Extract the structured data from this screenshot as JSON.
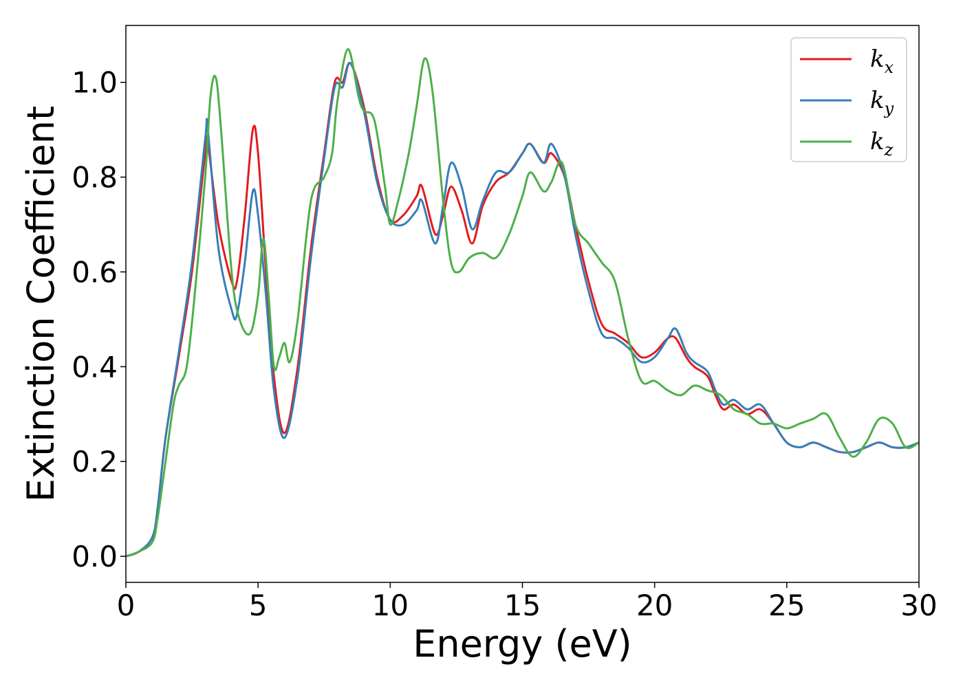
{
  "chart_data": {
    "type": "line",
    "title": "",
    "xlabel": "Energy (eV)",
    "ylabel": "Extinction Coefficient",
    "xlim": [
      0,
      30
    ],
    "ylim": [
      -0.055,
      1.12
    ],
    "xticks": [
      0,
      5,
      10,
      15,
      20,
      25,
      30
    ],
    "xtick_labels": [
      "0",
      "5",
      "10",
      "15",
      "20",
      "25",
      "30"
    ],
    "yticks": [
      0.0,
      0.2,
      0.4,
      0.6,
      0.8,
      1.0
    ],
    "ytick_labels": [
      "0.0",
      "0.2",
      "0.4",
      "0.6",
      "0.8",
      "1.0"
    ],
    "grid": false,
    "legend_position": "top-right",
    "series": [
      {
        "name": "k_x",
        "label_base": "k",
        "label_sub": "x",
        "color": "#e41a1c",
        "x": [
          0,
          0.5,
          1.0,
          1.2,
          1.5,
          2.0,
          2.5,
          3.0,
          3.1,
          3.5,
          4.0,
          4.2,
          4.5,
          4.8,
          5.0,
          5.3,
          5.6,
          6.0,
          6.5,
          7.0,
          7.5,
          7.9,
          8.2,
          8.5,
          9.0,
          9.5,
          10.0,
          10.5,
          11.0,
          11.2,
          11.7,
          12.0,
          12.3,
          12.7,
          13.1,
          13.5,
          14.0,
          14.5,
          15.0,
          15.3,
          15.8,
          16.1,
          16.6,
          17.0,
          17.5,
          18.0,
          18.5,
          19.0,
          19.5,
          20.0,
          20.5,
          20.8,
          21.2,
          21.5,
          22.0,
          22.3,
          22.6,
          23.0,
          23.5,
          24.0,
          24.5,
          25.0,
          25.5,
          26.0,
          26.5,
          27.0,
          27.5,
          28.0,
          28.5,
          29.0,
          29.5,
          30.0
        ],
        "y": [
          0.0,
          0.01,
          0.04,
          0.1,
          0.25,
          0.42,
          0.6,
          0.85,
          0.87,
          0.7,
          0.58,
          0.58,
          0.72,
          0.9,
          0.85,
          0.6,
          0.38,
          0.26,
          0.4,
          0.65,
          0.85,
          1.0,
          1.0,
          1.04,
          0.95,
          0.8,
          0.71,
          0.72,
          0.76,
          0.78,
          0.68,
          0.72,
          0.78,
          0.73,
          0.66,
          0.74,
          0.79,
          0.81,
          0.85,
          0.87,
          0.83,
          0.85,
          0.8,
          0.7,
          0.58,
          0.49,
          0.47,
          0.45,
          0.42,
          0.43,
          0.46,
          0.46,
          0.42,
          0.4,
          0.38,
          0.34,
          0.31,
          0.32,
          0.3,
          0.31,
          0.28,
          0.24,
          0.23,
          0.24,
          0.23,
          0.22,
          0.22,
          0.23,
          0.24,
          0.23,
          0.23,
          0.24
        ]
      },
      {
        "name": "k_y",
        "label_base": "k",
        "label_sub": "y",
        "color": "#377eb8",
        "x": [
          0,
          0.5,
          1.0,
          1.2,
          1.5,
          2.0,
          2.5,
          3.0,
          3.1,
          3.5,
          4.0,
          4.2,
          4.5,
          4.8,
          5.0,
          5.3,
          5.6,
          6.0,
          6.5,
          7.0,
          7.5,
          7.9,
          8.2,
          8.5,
          9.0,
          9.5,
          10.0,
          10.5,
          11.0,
          11.2,
          11.7,
          12.0,
          12.3,
          12.7,
          13.1,
          13.5,
          14.0,
          14.5,
          15.0,
          15.3,
          15.8,
          16.1,
          16.6,
          17.0,
          17.5,
          18.0,
          18.5,
          19.0,
          19.5,
          20.0,
          20.5,
          20.8,
          21.2,
          21.5,
          22.0,
          22.3,
          22.6,
          23.0,
          23.5,
          24.0,
          24.5,
          25.0,
          25.5,
          26.0,
          26.5,
          27.0,
          27.5,
          28.0,
          28.5,
          29.0,
          29.5,
          30.0
        ],
        "y": [
          0.0,
          0.01,
          0.04,
          0.1,
          0.25,
          0.43,
          0.62,
          0.88,
          0.9,
          0.65,
          0.52,
          0.51,
          0.62,
          0.77,
          0.72,
          0.55,
          0.35,
          0.25,
          0.38,
          0.63,
          0.84,
          0.99,
          0.99,
          1.04,
          0.94,
          0.79,
          0.71,
          0.7,
          0.73,
          0.75,
          0.66,
          0.74,
          0.83,
          0.78,
          0.69,
          0.75,
          0.81,
          0.81,
          0.85,
          0.87,
          0.83,
          0.87,
          0.8,
          0.68,
          0.56,
          0.47,
          0.46,
          0.44,
          0.41,
          0.42,
          0.46,
          0.48,
          0.43,
          0.41,
          0.39,
          0.35,
          0.32,
          0.33,
          0.31,
          0.32,
          0.28,
          0.24,
          0.23,
          0.24,
          0.23,
          0.22,
          0.22,
          0.23,
          0.24,
          0.23,
          0.23,
          0.24
        ]
      },
      {
        "name": "k_z",
        "label_base": "k",
        "label_sub": "z",
        "color": "#4daf4a",
        "x": [
          0,
          0.5,
          1.0,
          1.2,
          1.5,
          1.8,
          2.0,
          2.3,
          2.6,
          3.0,
          3.2,
          3.4,
          3.6,
          4.0,
          4.3,
          4.7,
          5.0,
          5.2,
          5.4,
          5.6,
          5.8,
          6.0,
          6.2,
          6.5,
          7.0,
          7.5,
          7.8,
          8.0,
          8.4,
          8.8,
          9.0,
          9.4,
          9.8,
          10.0,
          10.3,
          10.7,
          11.0,
          11.3,
          11.6,
          12.0,
          12.3,
          12.6,
          13.0,
          13.5,
          14.0,
          14.5,
          15.0,
          15.3,
          15.8,
          16.1,
          16.5,
          17.0,
          17.5,
          18.0,
          18.5,
          19.0,
          19.5,
          20.0,
          20.5,
          21.0,
          21.5,
          22.0,
          22.5,
          23.0,
          23.5,
          24.0,
          24.5,
          25.0,
          25.5,
          26.0,
          26.5,
          27.0,
          27.5,
          28.0,
          28.5,
          29.0,
          29.5,
          30.0
        ],
        "y": [
          0.0,
          0.01,
          0.03,
          0.08,
          0.2,
          0.32,
          0.36,
          0.4,
          0.55,
          0.8,
          0.97,
          1.01,
          0.9,
          0.6,
          0.5,
          0.47,
          0.55,
          0.67,
          0.55,
          0.4,
          0.42,
          0.45,
          0.41,
          0.5,
          0.75,
          0.8,
          0.85,
          0.96,
          1.07,
          0.97,
          0.94,
          0.92,
          0.78,
          0.7,
          0.75,
          0.85,
          0.95,
          1.05,
          0.98,
          0.75,
          0.62,
          0.6,
          0.63,
          0.64,
          0.63,
          0.68,
          0.76,
          0.81,
          0.77,
          0.79,
          0.83,
          0.7,
          0.66,
          0.62,
          0.58,
          0.46,
          0.37,
          0.37,
          0.35,
          0.34,
          0.36,
          0.35,
          0.34,
          0.31,
          0.3,
          0.28,
          0.28,
          0.27,
          0.28,
          0.29,
          0.3,
          0.25,
          0.21,
          0.24,
          0.29,
          0.28,
          0.23,
          0.24
        ]
      }
    ]
  }
}
